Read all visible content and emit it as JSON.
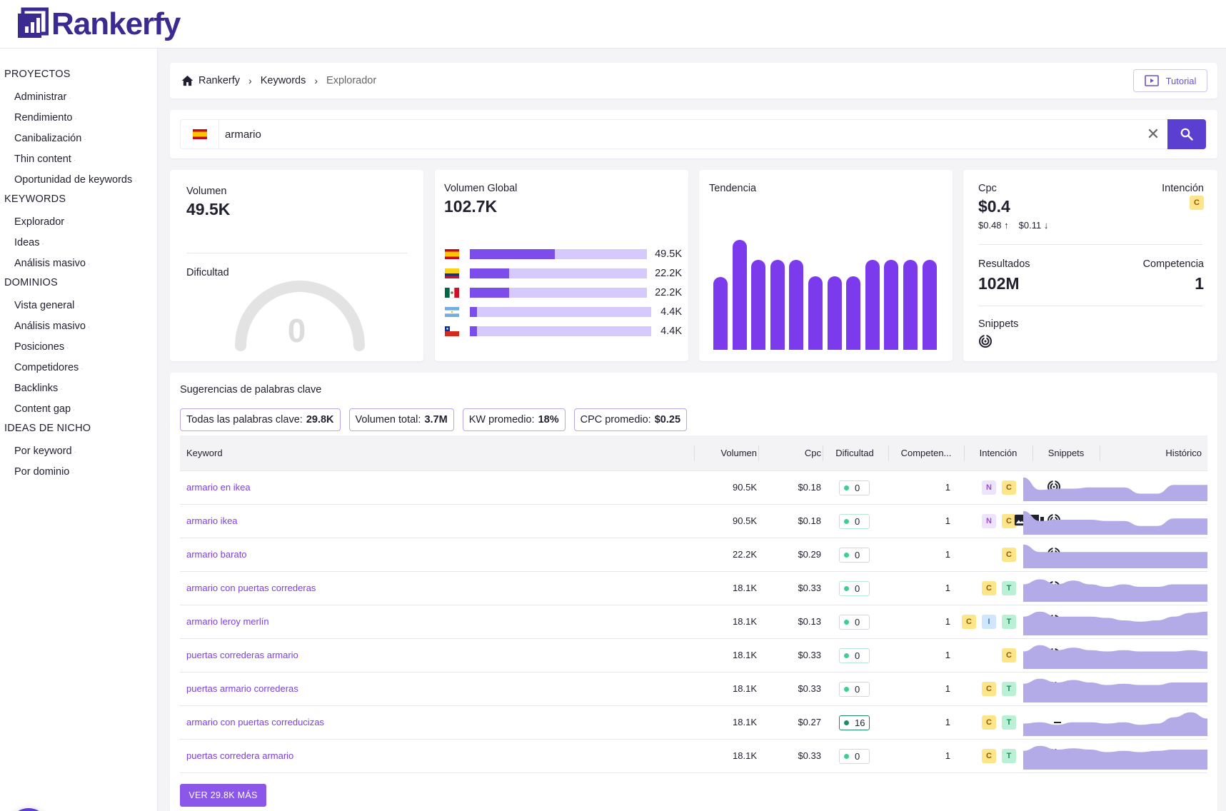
{
  "app": {
    "name": "Rankerfy"
  },
  "sidebar": {
    "sections": [
      {
        "title": "PROYECTOS",
        "items": [
          "Administrar",
          "Rendimiento",
          "Canibalización",
          "Thin content",
          "Oportunidad de keywords"
        ]
      },
      {
        "title": "KEYWORDS",
        "items": [
          "Explorador",
          "Ideas",
          "Análisis masivo"
        ]
      },
      {
        "title": "DOMINIOS",
        "items": [
          "Vista general",
          "Análisis masivo",
          "Posiciones",
          "Competidores",
          "Backlinks",
          "Content gap"
        ]
      },
      {
        "title": "IDEAS DE NICHO",
        "items": [
          "Por keyword",
          "Por dominio"
        ]
      }
    ]
  },
  "breadcrumb": {
    "home": "Rankerfy",
    "section": "Keywords",
    "current": "Explorador",
    "tutorial": "Tutorial"
  },
  "search": {
    "value": "armario",
    "country_flag": "es-flag-icon"
  },
  "volumen": {
    "title": "Volumen",
    "value": "49.5K",
    "difficulty_title": "Dificultad",
    "difficulty_value": "0",
    "difficulty": 0
  },
  "global": {
    "title": "Volumen Global",
    "value": "102.7K",
    "countries": [
      {
        "flag": "es-flag-icon",
        "value": "49.5K",
        "fill": 0.48
      },
      {
        "flag": "co-flag-icon",
        "value": "22.2K",
        "fill": 0.22
      },
      {
        "flag": "mx-flag-icon",
        "value": "22.2K",
        "fill": 0.22
      },
      {
        "flag": "ar-flag-icon",
        "value": "4.4K",
        "fill": 0.04
      },
      {
        "flag": "cl-flag-icon",
        "value": "4.4K",
        "fill": 0.04
      }
    ]
  },
  "trend": {
    "title": "Tendencia",
    "values": [
      0.66,
      1.0,
      0.82,
      0.82,
      0.82,
      0.67,
      0.67,
      0.67,
      0.82,
      0.82,
      0.82,
      0.82
    ]
  },
  "stats": {
    "cpc_title": "Cpc",
    "cpc_value": "$0.4",
    "cpc_high": "$0.48",
    "cpc_low": "$0.11",
    "intent_title": "Intención",
    "intent": "C",
    "results_title": "Resultados",
    "results_value": "102M",
    "competition_title": "Competencia",
    "competition_value": "1",
    "snippets_title": "Snippets"
  },
  "suggestions": {
    "title": "Sugerencias de palabras clave",
    "chips": [
      {
        "label": "Todas las palabras clave:",
        "value": "29.8K"
      },
      {
        "label": "Volumen total:",
        "value": "3.7M"
      },
      {
        "label": "KW promedio:",
        "value": "18%"
      },
      {
        "label": "CPC promedio:",
        "value": "$0.25"
      }
    ],
    "headers": {
      "keyword": "Keyword",
      "volume": "Volumen",
      "cpc": "Cpc",
      "difficulty": "Dificultad",
      "competition": "Competen...",
      "intent": "Intención",
      "snippets": "Snippets",
      "history": "Histórico"
    },
    "rows": [
      {
        "keyword": "armario en ikea",
        "volume": "90.5K",
        "cpc": "$0.18",
        "difficulty": "0",
        "competition": "1",
        "intents": [
          "N",
          "C"
        ],
        "snippets": [
          "featured-snippet-icon"
        ],
        "history": [
          0.95,
          0.45,
          0.5,
          0.5,
          0.55,
          0.55,
          0.55,
          0.3,
          0.3,
          0.65,
          0.65,
          0.65
        ]
      },
      {
        "keyword": "armario ikea",
        "volume": "90.5K",
        "cpc": "$0.18",
        "difficulty": "0",
        "competition": "1",
        "intents": [
          "N",
          "C"
        ],
        "snippets": [
          "image-pack-icon",
          "reviews-icon",
          "featured-snippet-icon"
        ],
        "history": [
          0.95,
          0.55,
          0.6,
          0.6,
          0.6,
          0.55,
          0.55,
          0.35,
          0.35,
          0.65,
          0.65,
          0.65
        ]
      },
      {
        "keyword": "armario barato",
        "volume": "22.2K",
        "cpc": "$0.29",
        "difficulty": "0",
        "competition": "1",
        "intents": [
          "C"
        ],
        "snippets": [
          "featured-snippet-icon"
        ],
        "history": [
          0.95,
          0.65,
          0.65,
          0.65,
          0.65,
          0.65,
          0.65,
          0.65,
          0.65,
          0.65,
          0.65,
          0.65
        ]
      },
      {
        "keyword": "armario con puertas correderas",
        "volume": "18.1K",
        "cpc": "$0.33",
        "difficulty": "0",
        "competition": "1",
        "intents": [
          "C",
          "T"
        ],
        "snippets": [
          "featured-snippet-icon"
        ],
        "history": [
          0.7,
          0.9,
          0.7,
          0.85,
          0.7,
          0.6,
          0.7,
          0.6,
          0.6,
          0.7,
          0.7,
          0.7
        ]
      },
      {
        "keyword": "armario leroy merlín",
        "volume": "18.1K",
        "cpc": "$0.13",
        "difficulty": "0",
        "competition": "1",
        "intents": [
          "C",
          "I",
          "T"
        ],
        "snippets": [
          "image-pack-icon",
          "featured-snippet-icon"
        ],
        "history": [
          0.75,
          0.95,
          0.75,
          0.75,
          0.75,
          0.7,
          0.6,
          0.55,
          0.6,
          0.75,
          0.9,
          0.95
        ]
      },
      {
        "keyword": "puertas correderas armario",
        "volume": "18.1K",
        "cpc": "$0.33",
        "difficulty": "0",
        "competition": "1",
        "intents": [
          "C"
        ],
        "snippets": [
          "featured-snippet-icon"
        ],
        "history": [
          0.7,
          0.95,
          0.75,
          0.85,
          0.75,
          0.7,
          0.75,
          0.7,
          0.7,
          0.7,
          0.75,
          0.7
        ]
      },
      {
        "keyword": "puertas armario correderas",
        "volume": "18.1K",
        "cpc": "$0.33",
        "difficulty": "0",
        "competition": "1",
        "intents": [
          "C",
          "T"
        ],
        "snippets": [
          "video-icon",
          "featured-snippet-icon"
        ],
        "history": [
          0.75,
          0.95,
          0.8,
          0.9,
          0.8,
          0.7,
          0.75,
          0.7,
          0.7,
          0.8,
          0.8,
          0.8
        ]
      },
      {
        "keyword": "armario con puertas correducizas",
        "volume": "18.1K",
        "cpc": "$0.27",
        "difficulty": "16",
        "competition": "1",
        "intents": [
          "C",
          "T"
        ],
        "snippets": [
          "none"
        ],
        "history": [
          0.5,
          0.55,
          0.45,
          0.55,
          0.55,
          0.5,
          0.55,
          0.45,
          0.5,
          0.75,
          0.95,
          0.7
        ]
      },
      {
        "keyword": "puertas corredera armario",
        "volume": "18.1K",
        "cpc": "$0.33",
        "difficulty": "0",
        "competition": "1",
        "intents": [
          "C",
          "T"
        ],
        "snippets": [
          "featured-snippet-icon"
        ],
        "history": [
          0.75,
          0.95,
          0.8,
          0.85,
          0.8,
          0.7,
          0.75,
          0.7,
          0.75,
          0.8,
          0.8,
          0.8
        ]
      }
    ],
    "more_label": "VER 29.8K MÁS"
  },
  "colors": {
    "accent": "#5b3fd1",
    "bar": "#7c3aed",
    "bar_light": "#d6c9fb",
    "spark": "#b3aae8"
  }
}
